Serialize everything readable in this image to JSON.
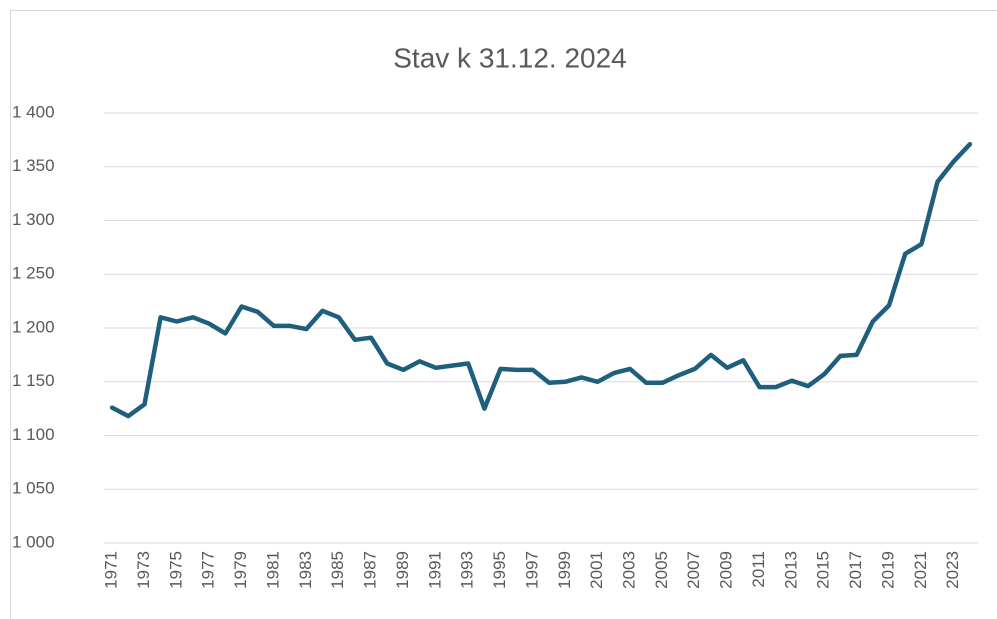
{
  "chart_data": {
    "type": "line",
    "title": "Stav k 31.12. 2024",
    "categories": [
      "1971",
      null,
      "1973",
      null,
      "1975",
      null,
      "1977",
      null,
      "1979",
      null,
      "1981",
      null,
      "1983",
      null,
      "1985",
      null,
      "1987",
      null,
      "1989",
      null,
      "1991",
      null,
      "1993",
      null,
      "1995",
      null,
      "1997",
      null,
      "1999",
      null,
      "2001",
      null,
      "2003",
      null,
      "2005",
      null,
      "2007",
      null,
      "2009",
      null,
      "2011",
      null,
      "2013",
      null,
      "2015",
      null,
      "2017",
      null,
      "2019",
      null,
      "2021",
      null,
      "2023",
      null
    ],
    "values": [
      1126,
      1118,
      1129,
      1210,
      1206,
      1210,
      1204,
      1195,
      1220,
      1215,
      1202,
      1202,
      1199,
      1216,
      1210,
      1189,
      1191,
      1167,
      1161,
      1169,
      1163,
      1165,
      1167,
      1125,
      1162,
      1161,
      1161,
      1149,
      1150,
      1154,
      1150,
      1158,
      1162,
      1149,
      1149,
      1156,
      1162,
      1175,
      1163,
      1170,
      1145,
      1145,
      1151,
      1146,
      1157,
      1174,
      1175,
      1206,
      1221,
      1269,
      1278,
      1336,
      1355,
      1371
    ],
    "color": "#1f5f7e",
    "ylim": [
      1000,
      1400
    ],
    "yticks": [
      {
        "value": 1000,
        "label": "1 000"
      },
      {
        "value": 1050,
        "label": "1 050"
      },
      {
        "value": 1100,
        "label": "1 100"
      },
      {
        "value": 1150,
        "label": "1 150"
      },
      {
        "value": 1200,
        "label": "1 200"
      },
      {
        "value": 1250,
        "label": "1 250"
      },
      {
        "value": 1300,
        "label": "1 300"
      },
      {
        "value": 1350,
        "label": "1 350"
      },
      {
        "value": 1400,
        "label": "1 400"
      }
    ],
    "grid": true
  }
}
